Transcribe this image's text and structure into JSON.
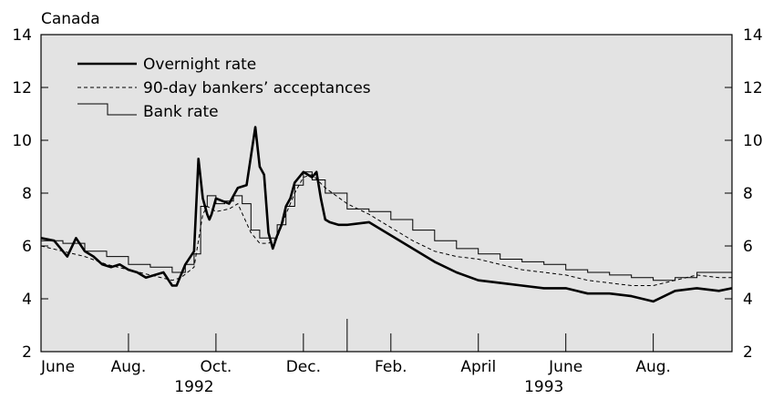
{
  "chart_data": {
    "type": "line",
    "region_label": "Canada",
    "y_ticks": [
      "2",
      "4",
      "6",
      "8",
      "10",
      "12",
      "14"
    ],
    "ylim": [
      2,
      14
    ],
    "xlim": [
      0,
      15.8
    ],
    "x_unit": "months since 1 June 1992",
    "month_labels": [
      {
        "label": "June",
        "x": 0
      },
      {
        "label": "Aug.",
        "x": 2
      },
      {
        "label": "Oct.",
        "x": 4
      },
      {
        "label": "Dec.",
        "x": 6
      },
      {
        "label": "Feb.",
        "x": 8
      },
      {
        "label": "April",
        "x": 10
      },
      {
        "label": "June",
        "x": 12
      },
      {
        "label": "Aug.",
        "x": 14
      }
    ],
    "year_labels": [
      {
        "label": "1992",
        "x": 3.5
      },
      {
        "label": "1993",
        "x": 11.5
      }
    ],
    "year_divider_x": 7,
    "legend": [
      {
        "name": "Overnight rate",
        "style": "thick"
      },
      {
        "name": "90-day bankers’ acceptances",
        "style": "dashed"
      },
      {
        "name": "Bank rate",
        "style": "step"
      }
    ],
    "series": [
      {
        "name": "Overnight rate",
        "x": [
          0,
          0.3,
          0.6,
          0.8,
          1.0,
          1.2,
          1.4,
          1.6,
          1.8,
          2.0,
          2.2,
          2.4,
          2.6,
          2.8,
          3.0,
          3.1,
          3.3,
          3.5,
          3.6,
          3.7,
          3.75,
          3.8,
          3.85,
          3.9,
          4.0,
          4.3,
          4.5,
          4.7,
          4.9,
          5.0,
          5.1,
          5.2,
          5.3,
          5.4,
          5.5,
          5.6,
          5.7,
          5.8,
          6.0,
          6.2,
          6.3,
          6.4,
          6.5,
          6.6,
          6.8,
          7.0,
          7.5,
          8.0,
          8.5,
          9.0,
          9.5,
          10.0,
          10.5,
          11.0,
          11.5,
          12.0,
          12.5,
          13.0,
          13.5,
          14.0,
          14.5,
          15.0,
          15.5,
          15.8
        ],
        "values": [
          6.3,
          6.2,
          5.6,
          6.3,
          5.8,
          5.6,
          5.3,
          5.2,
          5.3,
          5.1,
          5.0,
          4.8,
          4.9,
          5.0,
          4.5,
          4.5,
          5.3,
          5.8,
          9.3,
          7.8,
          7.5,
          7.2,
          7.0,
          7.2,
          7.8,
          7.6,
          8.2,
          8.3,
          10.5,
          9.0,
          8.7,
          6.5,
          5.9,
          6.4,
          6.8,
          7.5,
          7.8,
          8.4,
          8.8,
          8.6,
          8.8,
          7.8,
          7.0,
          6.9,
          6.8,
          6.8,
          6.9,
          6.4,
          5.9,
          5.4,
          5.0,
          4.7,
          4.6,
          4.5,
          4.4,
          4.4,
          4.2,
          4.2,
          4.1,
          3.9,
          4.3,
          4.4,
          4.3,
          4.4
        ]
      },
      {
        "name": "90-day bankers’ acceptances",
        "x": [
          0,
          0.5,
          1.0,
          1.5,
          2.0,
          2.5,
          3.0,
          3.2,
          3.5,
          3.7,
          3.8,
          4.0,
          4.3,
          4.5,
          4.8,
          5.0,
          5.2,
          5.4,
          5.6,
          5.8,
          6.0,
          6.2,
          6.5,
          7.0,
          7.5,
          8.0,
          8.5,
          9.0,
          9.5,
          10.0,
          10.5,
          11.0,
          11.5,
          12.0,
          12.5,
          13.0,
          13.5,
          14.0,
          14.5,
          15.0,
          15.5,
          15.8
        ],
        "values": [
          6.0,
          5.8,
          5.6,
          5.3,
          5.1,
          4.9,
          4.7,
          4.8,
          5.2,
          7.2,
          7.5,
          7.3,
          7.4,
          7.6,
          6.5,
          6.1,
          6.1,
          6.3,
          7.2,
          8.0,
          8.6,
          8.7,
          8.2,
          7.6,
          7.2,
          6.7,
          6.2,
          5.8,
          5.6,
          5.5,
          5.3,
          5.1,
          5.0,
          4.9,
          4.7,
          4.6,
          4.5,
          4.5,
          4.7,
          4.9,
          4.8,
          4.8
        ]
      },
      {
        "name": "Bank rate",
        "x": [
          0,
          0.5,
          1.0,
          1.5,
          2.0,
          2.5,
          3.0,
          3.3,
          3.5,
          3.65,
          3.8,
          4.0,
          4.2,
          4.4,
          4.6,
          4.8,
          5.0,
          5.2,
          5.4,
          5.6,
          5.8,
          6.0,
          6.2,
          6.5,
          7.0,
          7.5,
          8.0,
          8.5,
          9.0,
          9.5,
          10.0,
          10.5,
          11.0,
          11.5,
          12.0,
          12.5,
          13.0,
          13.5,
          14.0,
          14.5,
          15.0,
          15.8
        ],
        "values": [
          6.2,
          6.1,
          5.8,
          5.6,
          5.3,
          5.2,
          5.0,
          5.3,
          5.7,
          7.5,
          7.9,
          7.6,
          7.7,
          7.9,
          7.6,
          6.6,
          6.3,
          6.3,
          6.8,
          7.5,
          8.3,
          8.8,
          8.5,
          8.0,
          7.4,
          7.3,
          7.0,
          6.6,
          6.2,
          5.9,
          5.7,
          5.5,
          5.4,
          5.3,
          5.1,
          5.0,
          4.9,
          4.8,
          4.7,
          4.8,
          5.0,
          4.9
        ]
      }
    ]
  }
}
